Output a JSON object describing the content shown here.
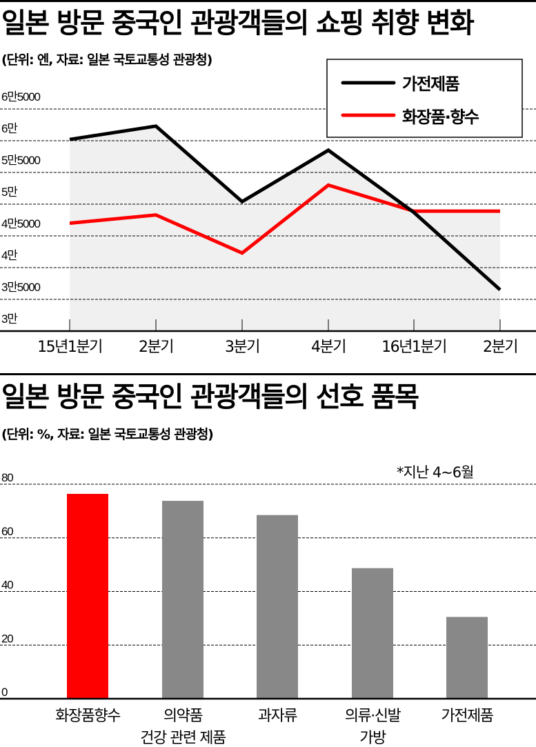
{
  "chart_data": [
    {
      "type": "line",
      "title": "일본 방문 중국인 관광객들의 쇼핑 취향 변화",
      "subtitle": "(단위: 엔, 자료: 일본 국토교통성 관광청)",
      "xlabel": "",
      "ylabel": "엔",
      "categories": [
        "15년1분기",
        "2분기",
        "3분기",
        "4분기",
        "16년1분기",
        "2분기"
      ],
      "y_ticks": [
        30000,
        35000,
        40000,
        45000,
        50000,
        55000,
        60000,
        65000
      ],
      "y_tick_labels": [
        "3만",
        "3만5000",
        "4만",
        "4만5000",
        "5만",
        "5만5000",
        "6만",
        "6만5000"
      ],
      "ylim": [
        30000,
        65000
      ],
      "grid": true,
      "legend_position": "top-right",
      "series": [
        {
          "name": "가전제품",
          "color": "#000000",
          "values": [
            60200,
            62300,
            50400,
            58500,
            48700,
            36500
          ]
        },
        {
          "name": "화장품·향수",
          "color": "#ff0000",
          "values": [
            47000,
            48300,
            42300,
            53000,
            48900,
            48900
          ]
        }
      ]
    },
    {
      "type": "bar",
      "title": "일본 방문 중국인 관광객들의 선호 품목",
      "subtitle": "(단위: %, 자료: 일본 국토교통성 관광청)",
      "annotation": "*지난 4~6월",
      "xlabel": "",
      "ylabel": "%",
      "categories": [
        "화장품향수",
        "의약품\n건강 관련 제품",
        "과자류",
        "의류·신발\n가방",
        "가전제품"
      ],
      "values": [
        76.4,
        73.8,
        68.5,
        48.7,
        30.5
      ],
      "colors": [
        "#ff0000",
        "#888888",
        "#888888",
        "#888888",
        "#888888"
      ],
      "y_ticks": [
        0,
        20,
        40,
        60,
        80
      ],
      "ylim": [
        0,
        80
      ],
      "grid": true
    }
  ],
  "line_chart": {
    "title": "일본 방문 중국인 관광객들의 쇼핑 취향 변화",
    "subtitle": "(단위: 엔, 자료: 일본 국토교통성 관광청)",
    "y_labels": [
      "6만5000",
      "6만",
      "5만5000",
      "5만",
      "4만5000",
      "4만",
      "3만5000",
      "3만"
    ],
    "x_labels": [
      "15년1분기",
      "2분기",
      "3분기",
      "4분기",
      "16년1분기",
      "2분기"
    ],
    "legend": {
      "series1": "가전제품",
      "series2": "화장품·향수"
    }
  },
  "bar_chart": {
    "title": "일본 방문 중국인 관광객들의 선호 품목",
    "subtitle": "(단위: %, 자료: 일본 국토교통성 관광청)",
    "note": "*지난 4~6월",
    "y_labels": [
      "80",
      "60",
      "40",
      "20",
      "0"
    ],
    "x_labels": [
      {
        "line1": "화장품향수",
        "line2": ""
      },
      {
        "line1": "의약품",
        "line2": "건강 관련 제품"
      },
      {
        "line1": "과자류",
        "line2": ""
      },
      {
        "line1": "의류·신발",
        "line2": "가방"
      },
      {
        "line1": "가전제품",
        "line2": ""
      }
    ]
  },
  "colors": {
    "black_series": "#000000",
    "red_series": "#ff0000",
    "gray_bar": "#888888",
    "fill": "#f0f0f0"
  }
}
